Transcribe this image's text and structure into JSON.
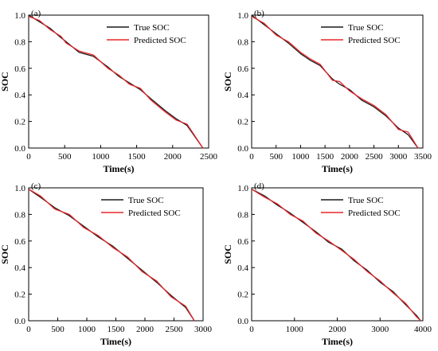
{
  "colors": {
    "true_series": "#1a1a1a",
    "predicted_series": "#e8262a"
  },
  "chart_data": [
    {
      "panel_label": "(a)",
      "type": "line",
      "xlabel": "Time(s)",
      "ylabel": "SOC",
      "xlim": [
        0,
        2500
      ],
      "ylim": [
        0.0,
        1.0
      ],
      "xticks": [
        0,
        500,
        1000,
        1500,
        2000,
        2500
      ],
      "yticks": [
        0.0,
        0.2,
        0.4,
        0.6,
        0.8,
        1.0
      ],
      "legend_position": "top-right",
      "series": [
        {
          "name": "True SOC",
          "x": [
            0,
            150,
            300,
            450,
            520,
            700,
            900,
            1100,
            1250,
            1400,
            1550,
            1700,
            1900,
            2050,
            2200,
            2420
          ],
          "y": [
            1.0,
            0.95,
            0.9,
            0.83,
            0.8,
            0.72,
            0.69,
            0.61,
            0.54,
            0.49,
            0.44,
            0.37,
            0.28,
            0.22,
            0.17,
            0.0
          ]
        },
        {
          "name": "Predicted SOC",
          "x": [
            0,
            150,
            300,
            450,
            520,
            700,
            900,
            1100,
            1250,
            1400,
            1550,
            1700,
            1900,
            2050,
            2200,
            2420
          ],
          "y": [
            0.99,
            0.96,
            0.89,
            0.84,
            0.79,
            0.73,
            0.7,
            0.6,
            0.55,
            0.48,
            0.45,
            0.36,
            0.27,
            0.21,
            0.18,
            0.0
          ]
        }
      ]
    },
    {
      "panel_label": "(b)",
      "type": "line",
      "xlabel": "Time(s)",
      "ylabel": "SOC",
      "xlim": [
        0,
        3500
      ],
      "ylim": [
        0.0,
        1.0
      ],
      "xticks": [
        0,
        500,
        1000,
        1500,
        2000,
        2500,
        3000,
        3500
      ],
      "yticks": [
        0.0,
        0.2,
        0.4,
        0.6,
        0.8,
        1.0
      ],
      "legend_position": "top-right",
      "series": [
        {
          "name": "True SOC",
          "x": [
            0,
            250,
            500,
            750,
            1000,
            1200,
            1400,
            1650,
            1800,
            2000,
            2250,
            2500,
            2750,
            3000,
            3200,
            3400
          ],
          "y": [
            1.0,
            0.93,
            0.86,
            0.79,
            0.71,
            0.66,
            0.62,
            0.52,
            0.48,
            0.44,
            0.36,
            0.31,
            0.24,
            0.15,
            0.1,
            0.0
          ]
        },
        {
          "name": "Predicted SOC",
          "x": [
            0,
            250,
            500,
            750,
            1000,
            1200,
            1400,
            1650,
            1800,
            2000,
            2250,
            2500,
            2750,
            3000,
            3200,
            3400
          ],
          "y": [
            0.99,
            0.94,
            0.85,
            0.8,
            0.72,
            0.67,
            0.63,
            0.51,
            0.5,
            0.43,
            0.37,
            0.32,
            0.25,
            0.14,
            0.12,
            0.0
          ]
        }
      ]
    },
    {
      "panel_label": "(c)",
      "type": "line",
      "xlabel": "Time(s)",
      "ylabel": "SOC",
      "xlim": [
        0,
        3000
      ],
      "ylim": [
        0.0,
        1.0
      ],
      "xticks": [
        0,
        500,
        1000,
        1500,
        2000,
        2500,
        3000
      ],
      "yticks": [
        0.0,
        0.2,
        0.4,
        0.6,
        0.8,
        1.0
      ],
      "legend_position": "top-right",
      "series": [
        {
          "name": "True SOC",
          "x": [
            0,
            200,
            450,
            700,
            950,
            1200,
            1450,
            1700,
            1950,
            2200,
            2450,
            2700,
            2850
          ],
          "y": [
            0.99,
            0.93,
            0.85,
            0.79,
            0.71,
            0.63,
            0.56,
            0.47,
            0.38,
            0.29,
            0.19,
            0.1,
            0.0
          ]
        },
        {
          "name": "Predicted SOC",
          "x": [
            0,
            200,
            450,
            700,
            950,
            1200,
            1450,
            1700,
            1950,
            2200,
            2450,
            2700,
            2850
          ],
          "y": [
            0.99,
            0.94,
            0.84,
            0.8,
            0.7,
            0.64,
            0.55,
            0.48,
            0.37,
            0.3,
            0.18,
            0.11,
            0.0
          ]
        }
      ]
    },
    {
      "panel_label": "(d)",
      "type": "line",
      "xlabel": "Time(s)",
      "ylabel": "SOC",
      "xlim": [
        0,
        4000
      ],
      "ylim": [
        0.0,
        1.0
      ],
      "xticks": [
        0,
        1000,
        2000,
        3000,
        4000
      ],
      "yticks": [
        0.0,
        0.2,
        0.4,
        0.6,
        0.8,
        1.0
      ],
      "legend_position": "top-right",
      "series": [
        {
          "name": "True SOC",
          "x": [
            0,
            300,
            600,
            900,
            1200,
            1500,
            1800,
            2100,
            2400,
            2700,
            3000,
            3300,
            3600,
            3850,
            3950
          ],
          "y": [
            0.99,
            0.94,
            0.87,
            0.81,
            0.74,
            0.67,
            0.59,
            0.54,
            0.45,
            0.38,
            0.29,
            0.22,
            0.12,
            0.04,
            0.0
          ]
        },
        {
          "name": "Predicted SOC",
          "x": [
            0,
            300,
            600,
            900,
            1200,
            1500,
            1800,
            2100,
            2400,
            2700,
            3000,
            3300,
            3600,
            3850,
            3950
          ],
          "y": [
            0.99,
            0.93,
            0.88,
            0.8,
            0.75,
            0.66,
            0.6,
            0.53,
            0.46,
            0.37,
            0.3,
            0.21,
            0.13,
            0.03,
            0.0
          ]
        }
      ]
    }
  ]
}
